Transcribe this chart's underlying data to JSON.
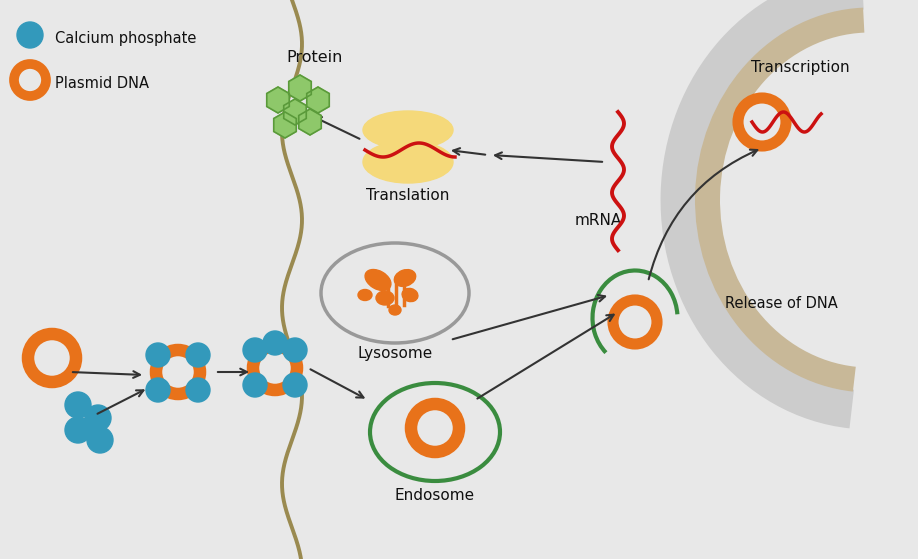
{
  "bg_color": "#e8e8e8",
  "ca_phosphate_color": "#3399bb",
  "plasmid_ring_color": "#e8721a",
  "endosome_ring_color": "#3a8c3f",
  "lysosome_ring_color": "#999999",
  "lysosome_content_color": "#e8721a",
  "protein_color": "#8ec86a",
  "protein_edge_color": "#5a9a3a",
  "ribosome_color": "#f5d97a",
  "mrna_color": "#cc1111",
  "membrane_color": "#9a8a50",
  "nucleus_outer_color": "#cccccc",
  "nucleus_inner_color": "#c8b898",
  "arrow_color": "#333333",
  "label_ca": "Calcium phosphate",
  "label_plasmid": "Plasmid DNA",
  "label_protein": "Protein",
  "label_translation": "Translation",
  "label_mrna": "mRNA",
  "label_transcription": "Transcription",
  "label_release": "Release of DNA",
  "label_lysosome": "Lysosome",
  "label_endosome": "Endosome"
}
